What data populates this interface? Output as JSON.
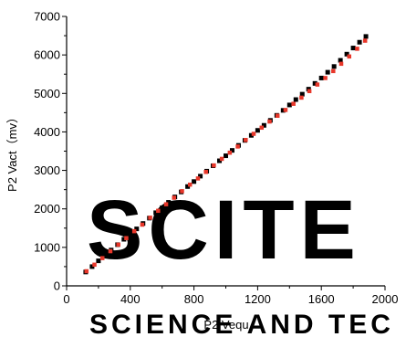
{
  "chart_data": {
    "type": "scatter",
    "title": "",
    "xlabel": "P2 Vequ",
    "ylabel": "P2 Vact（mv）",
    "xlim": [
      0,
      2000
    ],
    "ylim": [
      0,
      7000
    ],
    "xticks": [
      0,
      400,
      800,
      1200,
      1600,
      2000
    ],
    "yticks": [
      0,
      1000,
      2000,
      3000,
      4000,
      5000,
      6000,
      7000
    ],
    "xtick_labels": [
      "0",
      "400",
      "800",
      "1200",
      "1600",
      "2000"
    ],
    "ytick_labels": [
      "0",
      "1000",
      "2000",
      "3000",
      "4000",
      "5000",
      "6000",
      "7000"
    ],
    "grid": false,
    "legend": "none",
    "series": [
      {
        "marker": "square",
        "color": "#000000",
        "x": [
          120,
          160,
          200,
          240,
          280,
          320,
          360,
          400,
          440,
          480,
          520,
          560,
          600,
          640,
          680,
          720,
          760,
          800,
          840,
          880,
          920,
          960,
          1000,
          1040,
          1080,
          1120,
          1160,
          1200,
          1240,
          1280,
          1320,
          1360,
          1400,
          1440,
          1480,
          1520,
          1560,
          1600,
          1640,
          1680,
          1720,
          1760,
          1800,
          1840,
          1880
        ],
        "y": [
          360,
          500,
          650,
          790,
          930,
          1070,
          1210,
          1350,
          1480,
          1620,
          1760,
          1900,
          2030,
          2170,
          2310,
          2440,
          2580,
          2710,
          2850,
          2980,
          3120,
          3250,
          3380,
          3520,
          3650,
          3780,
          3910,
          4040,
          4170,
          4300,
          4430,
          4560,
          4700,
          4840,
          4980,
          5110,
          5260,
          5400,
          5550,
          5700,
          5860,
          6020,
          6180,
          6330,
          6480
        ]
      },
      {
        "marker": "square",
        "color": "#e8372a",
        "x": [
          125,
          175,
          225,
          275,
          325,
          375,
          425,
          475,
          525,
          575,
          625,
          675,
          725,
          775,
          825,
          875,
          925,
          975,
          1025,
          1075,
          1125,
          1175,
          1225,
          1275,
          1325,
          1375,
          1425,
          1475,
          1525,
          1575,
          1625,
          1675,
          1725,
          1775,
          1825,
          1875
        ],
        "y": [
          380,
          550,
          720,
          900,
          1070,
          1240,
          1420,
          1590,
          1770,
          1950,
          2120,
          2290,
          2460,
          2630,
          2790,
          2960,
          3130,
          3300,
          3460,
          3620,
          3790,
          3950,
          4110,
          4270,
          4420,
          4570,
          4730,
          4890,
          5060,
          5230,
          5400,
          5580,
          5770,
          5960,
          6160,
          6370
        ]
      }
    ]
  },
  "watermark": {
    "logo_text": "SCITE",
    "tagline": "SCIENCE AND TEC"
  }
}
